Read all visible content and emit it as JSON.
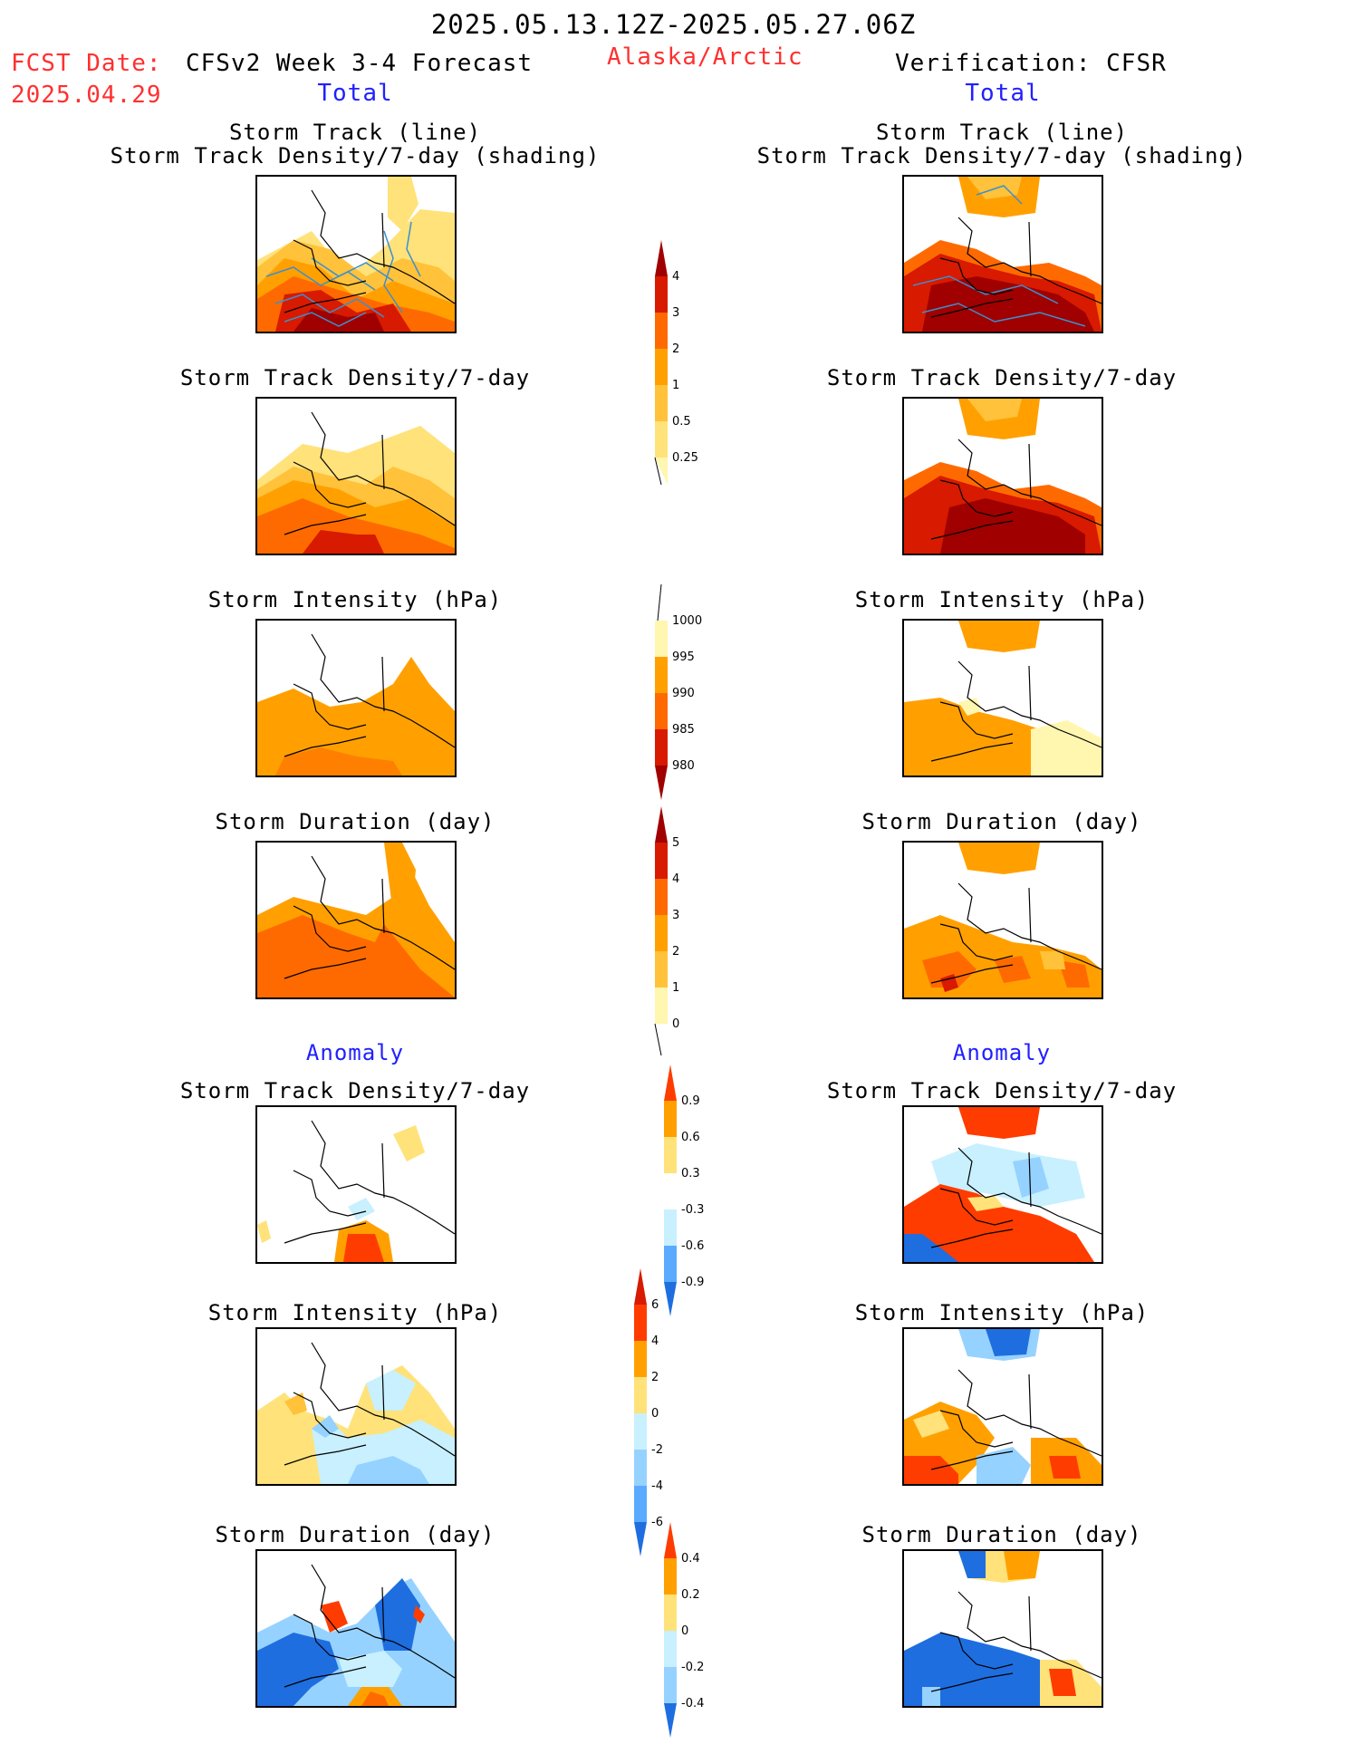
{
  "header": {
    "date_range": "2025.05.13.12Z-2025.05.27.06Z",
    "fcst_date_label": "FCST Date:",
    "fcst_date_value": "2025.04.29",
    "model_title": "CFSv2 Week 3-4 Forecast",
    "region": "Alaska/Arctic",
    "verification": "Verification: CFSR",
    "left_total": "Total",
    "right_total": "Total"
  },
  "titles": {
    "track_line": "Storm Track (line)",
    "track_shading": "Storm Track Density/7-day (shading)",
    "track_density": "Storm Track Density/7-day",
    "intensity": "Storm Intensity (hPa)",
    "duration": "Storm Duration (day)",
    "anomaly": "Anomaly"
  },
  "colors": {
    "pale": "#fff6b0",
    "light_yellow": "#ffe27a",
    "yellow_orange": "#ffc23a",
    "orange": "#ffa000",
    "dark_orange": "#ff6a00",
    "red_orange": "#ff3c00",
    "red": "#d81a00",
    "dark_red": "#a00000",
    "lightest_blue": "#c8f0ff",
    "light_blue": "#96d2ff",
    "mid_blue": "#5aaaff",
    "blue": "#1e6ee0",
    "track_line": "#3a90d0"
  },
  "colorbars": {
    "density": [
      "0.25",
      "0.5",
      "1",
      "2",
      "3",
      "4"
    ],
    "intensity": [
      "1000",
      "995",
      "990",
      "985",
      "980"
    ],
    "duration": [
      "0",
      "1",
      "2",
      "3",
      "4",
      "5"
    ],
    "anom_density": [
      "0.9",
      "0.6",
      "0.3",
      "-0.3",
      "-0.6",
      "-0.9"
    ],
    "anom_intensity": [
      "6",
      "4",
      "2",
      "0",
      "-2",
      "-4",
      "-6"
    ],
    "anom_duration": [
      "0.4",
      "0.2",
      "0",
      "-0.2",
      "-0.4"
    ]
  }
}
